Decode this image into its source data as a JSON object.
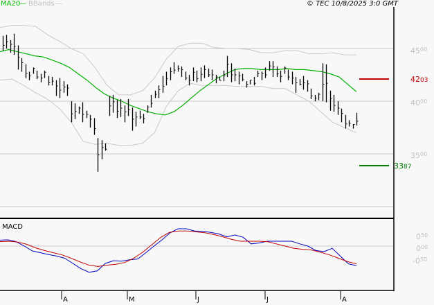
{
  "header": {
    "legend": [
      {
        "label": "MA20",
        "color": "#00c000"
      },
      {
        "label": "BBands",
        "color": "#c0c0c0"
      }
    ],
    "copyright": "© TEC 10/8/2025 3:0 GMT"
  },
  "price_panel": {
    "y_ticks": [
      {
        "int": "45",
        "dec": "00",
        "value": 45.0
      },
      {
        "int": "40",
        "dec": "00",
        "value": 40.0
      },
      {
        "int": "35",
        "dec": "00",
        "value": 35.0
      }
    ],
    "resistance": {
      "label_int": "42",
      "label_dec": "03",
      "value": 42.03,
      "color": "#c00000"
    },
    "support": {
      "label_int": "33",
      "label_dec": "87",
      "value": 33.87,
      "color": "#008000"
    }
  },
  "macd_panel": {
    "title": "MACD",
    "y_ticks": [
      {
        "int": "0",
        "dec": "50",
        "value": 0.5
      },
      {
        "int": "0",
        "dec": "00",
        "value": 0.0
      },
      {
        "int": "-0",
        "dec": "50",
        "value": -0.5
      }
    ]
  },
  "x_axis": {
    "months": [
      {
        "label": "A",
        "x": 89
      },
      {
        "label": "M",
        "x": 184
      },
      {
        "label": "J",
        "x": 283
      },
      {
        "label": "J",
        "x": 383
      },
      {
        "label": "A",
        "x": 492
      }
    ]
  },
  "chart_data": [
    {
      "type": "ohlc",
      "title": "Price with MA20 and Bollinger Bands",
      "legend": [
        "MA20",
        "BBands"
      ],
      "ylim": [
        30.0,
        49.5
      ],
      "y_ticks": [
        35.0,
        40.0,
        45.0
      ],
      "grid": true,
      "horizontal_levels": [
        {
          "name": "resistance",
          "value": 42.03
        },
        {
          "name": "support",
          "value": 33.87
        }
      ],
      "x_labels": [
        "A",
        "M",
        "J",
        "J",
        "A"
      ],
      "bars_hl": [
        [
          46.2,
          44.8
        ],
        [
          46.3,
          45.0
        ],
        [
          45.8,
          44.6
        ],
        [
          46.4,
          44.4
        ],
        [
          45.3,
          43.0
        ],
        [
          44.1,
          42.8
        ],
        [
          43.5,
          42.2
        ],
        [
          42.8,
          42.0
        ],
        [
          43.2,
          42.6
        ],
        [
          42.9,
          42.1
        ],
        [
          42.6,
          41.8
        ],
        [
          42.9,
          42.2
        ],
        [
          42.4,
          41.5
        ],
        [
          42.3,
          41.5
        ],
        [
          42.0,
          40.5
        ],
        [
          42.2,
          40.3
        ],
        [
          41.9,
          40.8
        ],
        [
          41.6,
          40.5
        ],
        [
          40.0,
          38.0
        ],
        [
          39.8,
          38.3
        ],
        [
          39.5,
          38.8
        ],
        [
          39.9,
          38.0
        ],
        [
          39.1,
          38.4
        ],
        [
          38.7,
          37.5
        ],
        [
          38.4,
          36.8
        ],
        [
          36.5,
          33.3
        ],
        [
          36.3,
          34.5
        ],
        [
          36.0,
          35.3
        ],
        [
          40.5,
          38.6
        ],
        [
          40.6,
          38.9
        ],
        [
          40.1,
          38.4
        ],
        [
          40.2,
          38.5
        ],
        [
          39.6,
          38.0
        ],
        [
          40.2,
          38.6
        ],
        [
          39.4,
          37.2
        ],
        [
          39.0,
          37.6
        ],
        [
          39.1,
          38.3
        ],
        [
          38.8,
          37.9
        ],
        [
          39.6,
          38.9
        ],
        [
          40.6,
          39.4
        ],
        [
          41.0,
          40.3
        ],
        [
          41.5,
          40.3
        ],
        [
          42.4,
          40.8
        ],
        [
          42.8,
          41.5
        ],
        [
          43.2,
          42.0
        ],
        [
          43.7,
          42.6
        ],
        [
          43.4,
          42.8
        ],
        [
          43.3,
          42.3
        ],
        [
          42.8,
          42.0
        ],
        [
          42.5,
          41.5
        ],
        [
          43.2,
          41.9
        ],
        [
          42.9,
          41.8
        ],
        [
          43.2,
          41.9
        ],
        [
          43.4,
          42.2
        ],
        [
          43.1,
          42.3
        ],
        [
          43.0,
          42.0
        ],
        [
          42.5,
          41.7
        ],
        [
          42.3,
          42.0
        ],
        [
          42.9,
          41.9
        ],
        [
          44.3,
          42.3
        ],
        [
          43.6,
          41.8
        ],
        [
          43.1,
          41.9
        ],
        [
          42.8,
          41.6
        ],
        [
          42.6,
          41.9
        ],
        [
          41.9,
          41.3
        ],
        [
          42.0,
          41.6
        ],
        [
          42.3,
          41.5
        ],
        [
          42.9,
          42.3
        ],
        [
          42.8,
          42.0
        ],
        [
          43.2,
          42.2
        ],
        [
          43.8,
          42.9
        ],
        [
          43.8,
          42.3
        ],
        [
          43.3,
          42.3
        ],
        [
          42.9,
          41.8
        ],
        [
          43.3,
          42.6
        ],
        [
          43.0,
          42.0
        ],
        [
          42.8,
          41.6
        ],
        [
          42.3,
          40.8
        ],
        [
          42.1,
          41.5
        ],
        [
          42.4,
          41.1
        ],
        [
          42.0,
          40.9
        ],
        [
          41.2,
          40.2
        ],
        [
          40.6,
          40.0
        ],
        [
          40.8,
          40.1
        ],
        [
          43.6,
          40.0
        ],
        [
          43.5,
          39.9
        ],
        [
          41.0,
          39.1
        ],
        [
          40.6,
          39.0
        ],
        [
          40.0,
          38.7
        ],
        [
          39.3,
          38.0
        ],
        [
          38.7,
          37.4
        ],
        [
          38.2,
          37.6
        ],
        [
          37.8,
          37.4
        ],
        [
          38.9,
          37.7
        ]
      ],
      "ma20_approx": [
        44.7,
        44.9,
        44.7,
        44.5,
        44.3,
        44.2,
        43.9,
        43.6,
        43.2,
        42.6,
        42.0,
        41.3,
        40.7,
        40.3,
        40.0,
        39.6,
        39.3,
        39.0,
        38.8,
        38.7,
        39.0,
        39.6,
        40.3,
        41.0,
        41.6,
        42.2,
        42.6,
        43.0,
        43.1,
        43.1,
        43.0,
        43.0,
        43.0,
        43.1,
        43.0,
        43.0,
        42.9,
        42.8,
        42.6,
        42.3,
        41.6,
        40.9
      ],
      "bb_upper_approx": [
        47.0,
        47.2,
        47.2,
        47.1,
        46.3,
        45.7,
        45.0,
        44.5,
        43.2,
        41.5,
        40.6,
        40.6,
        41.0,
        42.2,
        44.0,
        45.2,
        45.5,
        45.5,
        45.1,
        45.0,
        45.0,
        44.9,
        44.6,
        44.6,
        44.8,
        44.8,
        44.5,
        44.5,
        44.6,
        44.4,
        44.4
      ],
      "bb_lower_approx": [
        42.0,
        42.1,
        41.5,
        40.8,
        40.2,
        39.3,
        38.0,
        36.2,
        35.9,
        36.0,
        35.8,
        35.8,
        36.0,
        37.0,
        39.5,
        41.0,
        41.7,
        41.5,
        41.5,
        41.5,
        41.4,
        41.4,
        41.4,
        41.2,
        41.2,
        40.6,
        40.0,
        39.0,
        38.0,
        37.5,
        37.0
      ]
    },
    {
      "type": "line",
      "title": "MACD",
      "ylim": [
        -1.5,
        0.85
      ],
      "y_ticks": [
        -0.5,
        0.0,
        0.5
      ],
      "grid": true,
      "series": [
        {
          "name": "MACD",
          "color": "#0000c0",
          "values_approx": [
            0.27,
            0.28,
            0.2,
            0.0,
            -0.22,
            -0.3,
            -0.38,
            -0.45,
            -0.55,
            -0.78,
            -1.02,
            -1.18,
            -1.12,
            -0.78,
            -0.66,
            -0.68,
            -0.62,
            -0.58,
            -0.3,
            0.0,
            0.28,
            0.6,
            0.78,
            0.78,
            0.68,
            0.67,
            0.62,
            0.55,
            0.42,
            0.5,
            0.4,
            0.1,
            0.14,
            0.22,
            0.22,
            0.22,
            0.22,
            0.1,
            0.0,
            -0.2,
            -0.25,
            -0.1,
            -0.45,
            -0.8,
            -0.88
          ]
        },
        {
          "name": "Signal",
          "color": "#c00000",
          "values_approx": [
            0.2,
            0.22,
            0.18,
            0.08,
            -0.08,
            -0.2,
            -0.3,
            -0.4,
            -0.55,
            -0.72,
            -0.86,
            -0.92,
            -0.86,
            -0.82,
            -0.74,
            -0.55,
            -0.28,
            0.05,
            0.38,
            0.62,
            0.68,
            0.68,
            0.64,
            0.6,
            0.52,
            0.42,
            0.3,
            0.22,
            0.22,
            0.22,
            0.2,
            0.1,
            0.0,
            -0.1,
            -0.15,
            -0.18,
            -0.28,
            -0.4,
            -0.55,
            -0.7,
            -0.8
          ]
        }
      ]
    }
  ]
}
